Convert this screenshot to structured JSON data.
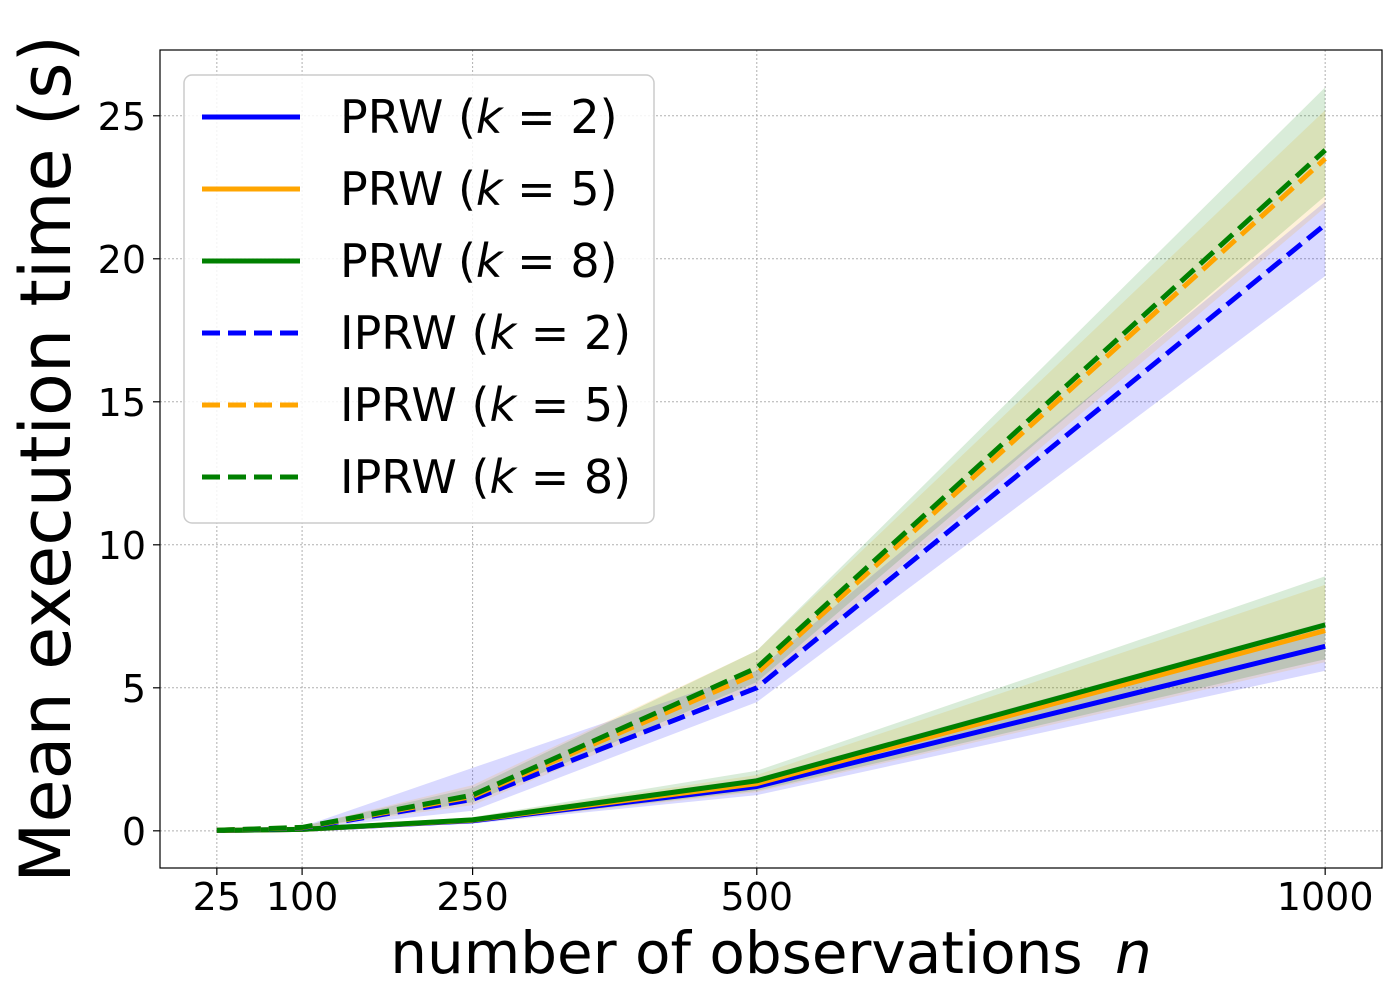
{
  "chart_data": {
    "type": "line",
    "xlabel": "number of observations",
    "xlabel_var": "n",
    "ylabel": "Mean execution time (s)",
    "x": [
      25,
      100,
      250,
      500,
      1000
    ],
    "xticks": [
      25,
      100,
      250,
      500,
      1000
    ],
    "yticks": [
      0,
      5,
      10,
      15,
      20,
      25
    ],
    "xlim": [
      -25,
      1050
    ],
    "ylim": [
      -1.3,
      27.3
    ],
    "grid": true,
    "legend_position": "top-left",
    "band_opacity": 0.15,
    "series": [
      {
        "name": "PRW (k = 2)",
        "method": "PRW",
        "k": "2",
        "color": "#0000ff",
        "style": "solid",
        "values": [
          0.01,
          0.05,
          0.35,
          1.55,
          6.45
        ],
        "lower": [
          0.0,
          0.03,
          0.25,
          1.25,
          5.6
        ],
        "upper": [
          0.02,
          0.08,
          0.45,
          1.85,
          7.3
        ]
      },
      {
        "name": "PRW (k = 5)",
        "method": "PRW",
        "k": "5",
        "color": "#ffa500",
        "style": "solid",
        "values": [
          0.01,
          0.05,
          0.37,
          1.65,
          7.0
        ],
        "lower": [
          0.0,
          0.03,
          0.27,
          1.35,
          5.9
        ],
        "upper": [
          0.02,
          0.08,
          0.47,
          1.95,
          8.6
        ]
      },
      {
        "name": "PRW (k = 8)",
        "method": "PRW",
        "k": "8",
        "color": "#008000",
        "style": "solid",
        "values": [
          0.01,
          0.05,
          0.38,
          1.75,
          7.2
        ],
        "lower": [
          0.0,
          0.03,
          0.28,
          1.4,
          6.0
        ],
        "upper": [
          0.02,
          0.08,
          0.48,
          2.1,
          8.9
        ]
      },
      {
        "name": "IPRW (k = 2)",
        "method": "IPRW",
        "k": "2",
        "color": "#0000ff",
        "style": "dashed",
        "values": [
          0.02,
          0.1,
          1.1,
          5.0,
          21.2
        ],
        "lower": [
          0.0,
          0.06,
          0.7,
          4.5,
          19.4
        ],
        "upper": [
          0.04,
          0.14,
          2.2,
          5.6,
          22.0
        ]
      },
      {
        "name": "IPRW (k = 5)",
        "method": "IPRW",
        "k": "5",
        "color": "#ffa500",
        "style": "dashed",
        "values": [
          0.02,
          0.11,
          1.2,
          5.5,
          23.5
        ],
        "lower": [
          0.0,
          0.07,
          0.9,
          5.0,
          21.8
        ],
        "upper": [
          0.04,
          0.15,
          1.6,
          6.3,
          25.2
        ]
      },
      {
        "name": "IPRW (k = 8)",
        "method": "IPRW",
        "k": "8",
        "color": "#008000",
        "style": "dashed",
        "values": [
          0.02,
          0.12,
          1.25,
          5.7,
          23.8
        ],
        "lower": [
          0.0,
          0.08,
          1.0,
          5.2,
          22.2
        ],
        "upper": [
          0.04,
          0.16,
          1.5,
          6.3,
          26.0
        ]
      }
    ]
  }
}
